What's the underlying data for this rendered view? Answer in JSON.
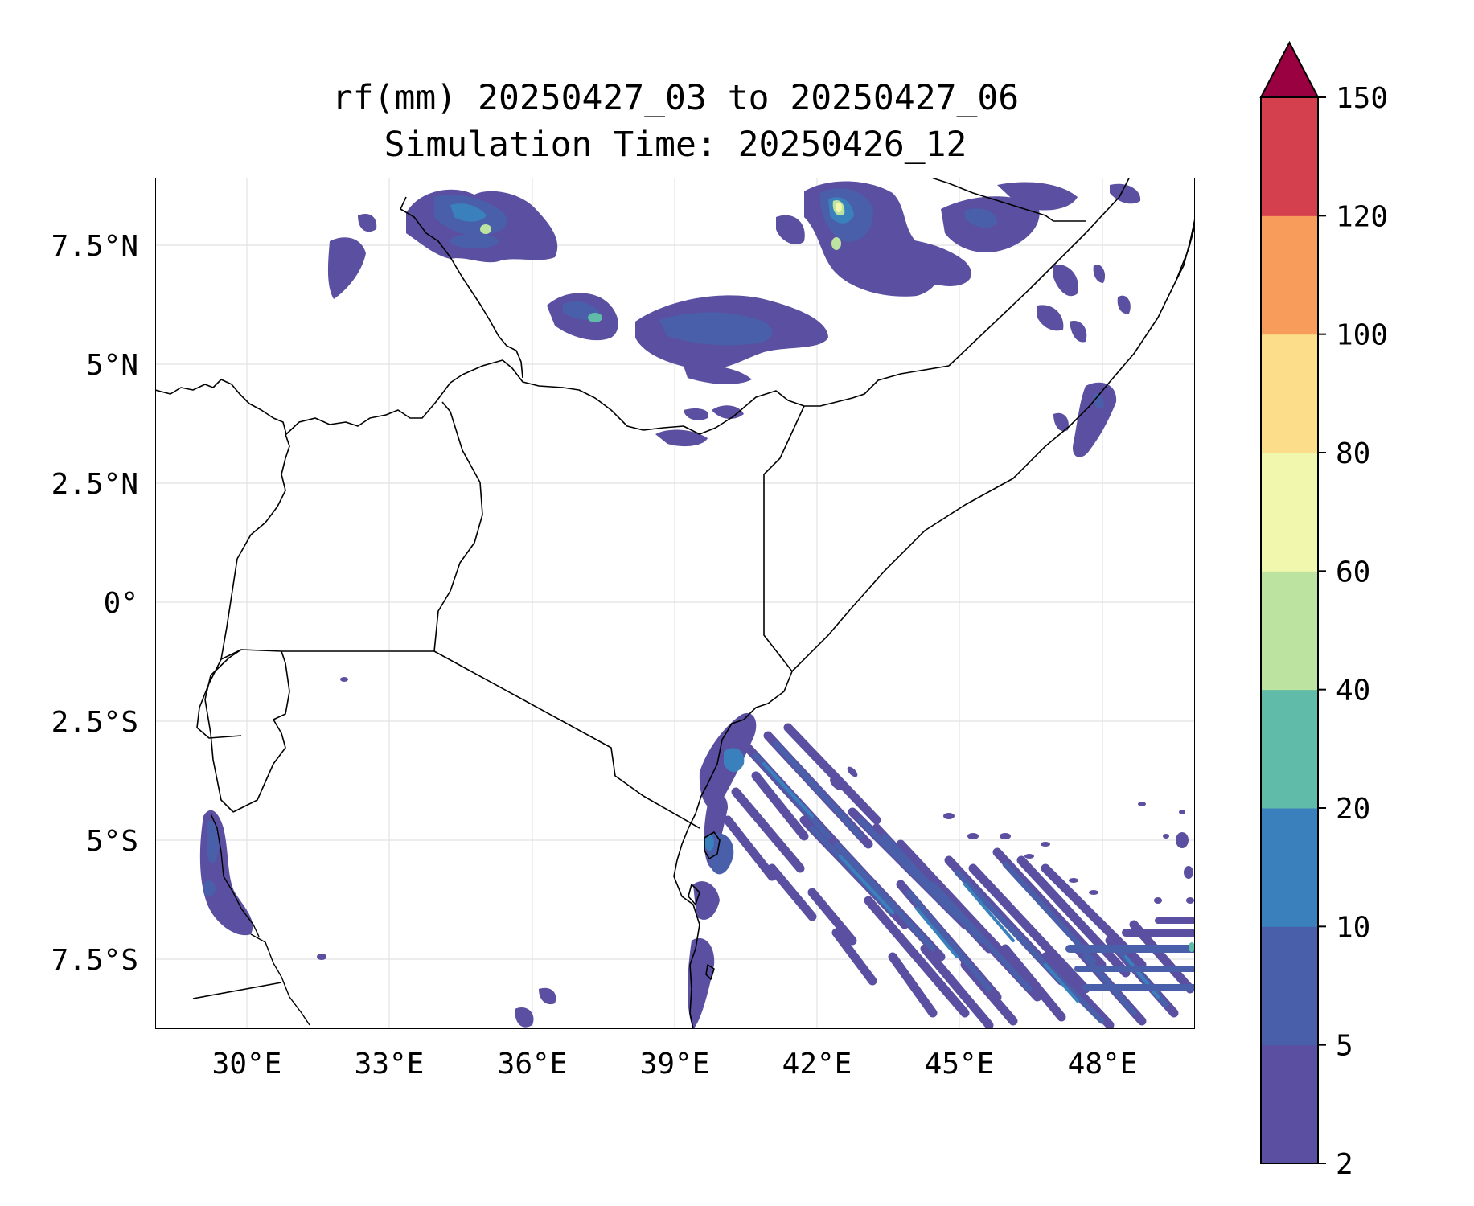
{
  "title": {
    "line1": "rf(mm) 20250427_03 to 20250427_06",
    "line2": "Simulation Time: 20250426_12"
  },
  "map": {
    "lon_ticks": [
      "30°E",
      "33°E",
      "36°E",
      "39°E",
      "42°E",
      "45°E",
      "48°E"
    ],
    "lat_ticks": [
      "7.5°N",
      "5°N",
      "2.5°N",
      "0°",
      "2.5°S",
      "5°S",
      "7.5°S"
    ],
    "lon_range": [
      28.1,
      50.0
    ],
    "lat_range": [
      -8.95,
      8.95
    ]
  },
  "colorbar": {
    "levels": [
      "2",
      "5",
      "10",
      "20",
      "40",
      "60",
      "80",
      "100",
      "120",
      "150"
    ],
    "colors": [
      "#5a4fa0",
      "#4a5faa",
      "#3a80bc",
      "#60bba9",
      "#bce3a0",
      "#f1f8ae",
      "#fbdd8a",
      "#f79c5a",
      "#d5404e",
      "#9a0140"
    ],
    "extend": "max"
  }
}
